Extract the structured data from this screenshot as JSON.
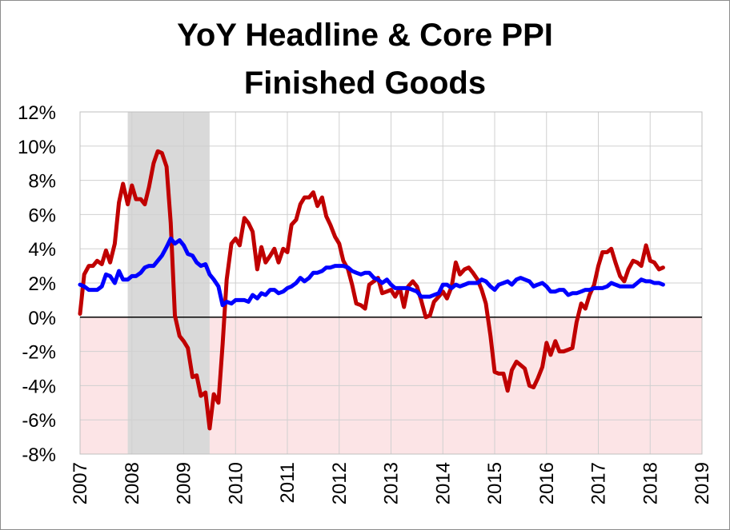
{
  "chart_data": {
    "type": "line",
    "title_line1": "YoY Headline & Core PPI",
    "title_line2": "Finished Goods",
    "xlabel": "",
    "ylabel": "",
    "xlim": [
      2007,
      2019
    ],
    "ylim": [
      -8,
      12
    ],
    "y_ticks": [
      "-8%",
      "-6%",
      "-4%",
      "-2%",
      "0%",
      "2%",
      "4%",
      "6%",
      "8%",
      "10%",
      "12%"
    ],
    "y_tick_values": [
      -8,
      -6,
      -4,
      -2,
      0,
      2,
      4,
      6,
      8,
      10,
      12
    ],
    "x_ticks": [
      "2007",
      "2008",
      "2009",
      "2010",
      "2011",
      "2012",
      "2013",
      "2014",
      "2015",
      "2016",
      "2017",
      "2018",
      "2019"
    ],
    "x_tick_values": [
      2007,
      2008,
      2009,
      2010,
      2011,
      2012,
      2013,
      2014,
      2015,
      2016,
      2017,
      2018,
      2019
    ],
    "grid": true,
    "recession": [
      2007.92,
      2009.5
    ],
    "negative_region_color": "#fce4e6",
    "recession_color": "#d9d9d9",
    "series": [
      {
        "color": "#c00000",
        "points": [
          [
            2007.0,
            0.2
          ],
          [
            2007.08,
            2.5
          ],
          [
            2007.17,
            3.0
          ],
          [
            2007.25,
            3.0
          ],
          [
            2007.33,
            3.3
          ],
          [
            2007.42,
            3.1
          ],
          [
            2007.5,
            3.9
          ],
          [
            2007.58,
            3.2
          ],
          [
            2007.67,
            4.3
          ],
          [
            2007.75,
            6.7
          ],
          [
            2007.83,
            7.8
          ],
          [
            2007.92,
            6.6
          ],
          [
            2008.0,
            7.7
          ],
          [
            2008.08,
            6.9
          ],
          [
            2008.17,
            6.9
          ],
          [
            2008.25,
            6.6
          ],
          [
            2008.33,
            7.6
          ],
          [
            2008.42,
            9.0
          ],
          [
            2008.5,
            9.7
          ],
          [
            2008.58,
            9.6
          ],
          [
            2008.67,
            8.8
          ],
          [
            2008.75,
            5.5
          ],
          [
            2008.83,
            0.1
          ],
          [
            2008.92,
            -1.1
          ],
          [
            2009.0,
            -1.4
          ],
          [
            2009.08,
            -1.8
          ],
          [
            2009.17,
            -3.5
          ],
          [
            2009.25,
            -3.4
          ],
          [
            2009.33,
            -4.6
          ],
          [
            2009.42,
            -4.4
          ],
          [
            2009.5,
            -6.5
          ],
          [
            2009.58,
            -4.5
          ],
          [
            2009.67,
            -5.0
          ],
          [
            2009.75,
            -1.6
          ],
          [
            2009.83,
            2.2
          ],
          [
            2009.92,
            4.3
          ],
          [
            2010.0,
            4.6
          ],
          [
            2010.08,
            4.2
          ],
          [
            2010.17,
            5.8
          ],
          [
            2010.25,
            5.5
          ],
          [
            2010.33,
            5.0
          ],
          [
            2010.42,
            2.8
          ],
          [
            2010.5,
            4.1
          ],
          [
            2010.58,
            3.2
          ],
          [
            2010.67,
            3.6
          ],
          [
            2010.75,
            4.0
          ],
          [
            2010.83,
            3.2
          ],
          [
            2010.92,
            4.0
          ],
          [
            2011.0,
            3.8
          ],
          [
            2011.08,
            5.4
          ],
          [
            2011.17,
            5.7
          ],
          [
            2011.25,
            6.6
          ],
          [
            2011.33,
            7.0
          ],
          [
            2011.42,
            7.0
          ],
          [
            2011.5,
            7.3
          ],
          [
            2011.58,
            6.5
          ],
          [
            2011.67,
            7.0
          ],
          [
            2011.75,
            5.9
          ],
          [
            2011.83,
            5.4
          ],
          [
            2011.92,
            4.7
          ],
          [
            2012.0,
            4.3
          ],
          [
            2012.08,
            3.3
          ],
          [
            2012.17,
            2.8
          ],
          [
            2012.25,
            1.9
          ],
          [
            2012.33,
            0.8
          ],
          [
            2012.42,
            0.7
          ],
          [
            2012.5,
            0.5
          ],
          [
            2012.58,
            1.9
          ],
          [
            2012.67,
            2.1
          ],
          [
            2012.75,
            2.3
          ],
          [
            2012.83,
            1.4
          ],
          [
            2012.92,
            1.5
          ],
          [
            2013.0,
            1.6
          ],
          [
            2013.08,
            1.2
          ],
          [
            2013.17,
            1.7
          ],
          [
            2013.25,
            0.6
          ],
          [
            2013.33,
            1.8
          ],
          [
            2013.42,
            2.1
          ],
          [
            2013.5,
            1.8
          ],
          [
            2013.58,
            1.0
          ],
          [
            2013.67,
            0.0
          ],
          [
            2013.75,
            0.1
          ],
          [
            2013.83,
            0.9
          ],
          [
            2013.92,
            1.2
          ],
          [
            2014.0,
            1.5
          ],
          [
            2014.08,
            1.1
          ],
          [
            2014.17,
            1.8
          ],
          [
            2014.25,
            3.2
          ],
          [
            2014.33,
            2.5
          ],
          [
            2014.42,
            2.8
          ],
          [
            2014.5,
            2.9
          ],
          [
            2014.58,
            2.6
          ],
          [
            2014.67,
            2.2
          ],
          [
            2014.75,
            1.6
          ],
          [
            2014.83,
            0.8
          ],
          [
            2014.92,
            -1.1
          ],
          [
            2015.0,
            -3.2
          ],
          [
            2015.08,
            -3.3
          ],
          [
            2015.17,
            -3.3
          ],
          [
            2015.25,
            -4.3
          ],
          [
            2015.33,
            -3.1
          ],
          [
            2015.42,
            -2.6
          ],
          [
            2015.5,
            -2.8
          ],
          [
            2015.58,
            -3.0
          ],
          [
            2015.67,
            -4.0
          ],
          [
            2015.75,
            -4.1
          ],
          [
            2015.83,
            -3.6
          ],
          [
            2015.92,
            -2.9
          ],
          [
            2016.0,
            -1.5
          ],
          [
            2016.08,
            -2.2
          ],
          [
            2016.17,
            -1.4
          ],
          [
            2016.25,
            -2.0
          ],
          [
            2016.33,
            -2.0
          ],
          [
            2016.42,
            -1.9
          ],
          [
            2016.5,
            -1.8
          ],
          [
            2016.58,
            -0.3
          ],
          [
            2016.67,
            0.8
          ],
          [
            2016.75,
            0.5
          ],
          [
            2016.83,
            1.3
          ],
          [
            2016.92,
            1.9
          ],
          [
            2017.0,
            3.0
          ],
          [
            2017.08,
            3.8
          ],
          [
            2017.17,
            3.8
          ],
          [
            2017.25,
            4.0
          ],
          [
            2017.33,
            3.2
          ],
          [
            2017.42,
            2.4
          ],
          [
            2017.5,
            2.1
          ],
          [
            2017.58,
            2.8
          ],
          [
            2017.67,
            3.3
          ],
          [
            2017.75,
            3.2
          ],
          [
            2017.83,
            3.0
          ],
          [
            2017.92,
            4.2
          ],
          [
            2018.0,
            3.3
          ],
          [
            2018.08,
            3.2
          ],
          [
            2018.17,
            2.8
          ],
          [
            2018.25,
            2.9
          ]
        ]
      },
      {
        "color": "#0000ff",
        "points": [
          [
            2007.0,
            1.9
          ],
          [
            2007.08,
            1.8
          ],
          [
            2007.17,
            1.6
          ],
          [
            2007.25,
            1.6
          ],
          [
            2007.33,
            1.6
          ],
          [
            2007.42,
            1.8
          ],
          [
            2007.5,
            2.5
          ],
          [
            2007.58,
            2.4
          ],
          [
            2007.67,
            2.0
          ],
          [
            2007.75,
            2.7
          ],
          [
            2007.83,
            2.2
          ],
          [
            2007.92,
            2.2
          ],
          [
            2008.0,
            2.4
          ],
          [
            2008.08,
            2.4
          ],
          [
            2008.17,
            2.6
          ],
          [
            2008.25,
            2.9
          ],
          [
            2008.33,
            3.0
          ],
          [
            2008.42,
            3.0
          ],
          [
            2008.5,
            3.3
          ],
          [
            2008.58,
            3.6
          ],
          [
            2008.67,
            4.1
          ],
          [
            2008.75,
            4.6
          ],
          [
            2008.83,
            4.3
          ],
          [
            2008.92,
            4.5
          ],
          [
            2009.0,
            4.2
          ],
          [
            2009.08,
            3.7
          ],
          [
            2009.17,
            3.6
          ],
          [
            2009.25,
            3.2
          ],
          [
            2009.33,
            3.0
          ],
          [
            2009.42,
            3.1
          ],
          [
            2009.5,
            2.5
          ],
          [
            2009.58,
            2.2
          ],
          [
            2009.67,
            1.8
          ],
          [
            2009.75,
            0.7
          ],
          [
            2009.83,
            0.9
          ],
          [
            2009.92,
            0.8
          ],
          [
            2010.0,
            1.0
          ],
          [
            2010.08,
            1.0
          ],
          [
            2010.17,
            1.0
          ],
          [
            2010.25,
            0.9
          ],
          [
            2010.33,
            1.3
          ],
          [
            2010.42,
            1.1
          ],
          [
            2010.5,
            1.4
          ],
          [
            2010.58,
            1.3
          ],
          [
            2010.67,
            1.6
          ],
          [
            2010.75,
            1.6
          ],
          [
            2010.83,
            1.4
          ],
          [
            2010.92,
            1.5
          ],
          [
            2011.0,
            1.7
          ],
          [
            2011.08,
            1.8
          ],
          [
            2011.17,
            2.0
          ],
          [
            2011.25,
            2.3
          ],
          [
            2011.33,
            2.1
          ],
          [
            2011.42,
            2.3
          ],
          [
            2011.5,
            2.6
          ],
          [
            2011.58,
            2.6
          ],
          [
            2011.67,
            2.7
          ],
          [
            2011.75,
            2.9
          ],
          [
            2011.83,
            2.9
          ],
          [
            2011.92,
            3.0
          ],
          [
            2012.0,
            3.0
          ],
          [
            2012.08,
            3.0
          ],
          [
            2012.17,
            2.9
          ],
          [
            2012.25,
            2.7
          ],
          [
            2012.33,
            2.6
          ],
          [
            2012.42,
            2.5
          ],
          [
            2012.5,
            2.6
          ],
          [
            2012.58,
            2.6
          ],
          [
            2012.67,
            2.3
          ],
          [
            2012.75,
            2.2
          ],
          [
            2012.83,
            2.0
          ],
          [
            2012.92,
            2.2
          ],
          [
            2013.0,
            1.9
          ],
          [
            2013.08,
            1.7
          ],
          [
            2013.17,
            1.7
          ],
          [
            2013.25,
            1.7
          ],
          [
            2013.33,
            1.7
          ],
          [
            2013.42,
            1.6
          ],
          [
            2013.5,
            1.5
          ],
          [
            2013.58,
            1.2
          ],
          [
            2013.67,
            1.2
          ],
          [
            2013.75,
            1.2
          ],
          [
            2013.83,
            1.3
          ],
          [
            2013.92,
            1.4
          ],
          [
            2014.0,
            1.9
          ],
          [
            2014.08,
            1.9
          ],
          [
            2014.17,
            1.7
          ],
          [
            2014.25,
            1.9
          ],
          [
            2014.33,
            1.8
          ],
          [
            2014.42,
            1.9
          ],
          [
            2014.5,
            2.0
          ],
          [
            2014.58,
            2.0
          ],
          [
            2014.67,
            2.0
          ],
          [
            2014.75,
            2.2
          ],
          [
            2014.83,
            2.1
          ],
          [
            2014.92,
            1.8
          ],
          [
            2015.0,
            1.6
          ],
          [
            2015.08,
            1.9
          ],
          [
            2015.17,
            2.0
          ],
          [
            2015.25,
            2.1
          ],
          [
            2015.33,
            1.9
          ],
          [
            2015.42,
            2.2
          ],
          [
            2015.5,
            2.3
          ],
          [
            2015.58,
            2.2
          ],
          [
            2015.67,
            2.1
          ],
          [
            2015.75,
            1.8
          ],
          [
            2015.83,
            1.9
          ],
          [
            2015.92,
            2.0
          ],
          [
            2016.0,
            1.8
          ],
          [
            2016.08,
            1.5
          ],
          [
            2016.17,
            1.5
          ],
          [
            2016.25,
            1.6
          ],
          [
            2016.33,
            1.6
          ],
          [
            2016.42,
            1.3
          ],
          [
            2016.5,
            1.4
          ],
          [
            2016.58,
            1.4
          ],
          [
            2016.67,
            1.5
          ],
          [
            2016.75,
            1.6
          ],
          [
            2016.83,
            1.6
          ],
          [
            2016.92,
            1.7
          ],
          [
            2017.0,
            1.7
          ],
          [
            2017.08,
            1.7
          ],
          [
            2017.17,
            1.8
          ],
          [
            2017.25,
            2.0
          ],
          [
            2017.33,
            1.9
          ],
          [
            2017.42,
            1.8
          ],
          [
            2017.5,
            1.8
          ],
          [
            2017.58,
            1.8
          ],
          [
            2017.67,
            1.8
          ],
          [
            2017.75,
            2.0
          ],
          [
            2017.83,
            2.2
          ],
          [
            2017.92,
            2.1
          ],
          [
            2018.0,
            2.1
          ],
          [
            2018.08,
            2.0
          ],
          [
            2018.17,
            2.0
          ],
          [
            2018.25,
            1.9
          ]
        ]
      }
    ]
  }
}
